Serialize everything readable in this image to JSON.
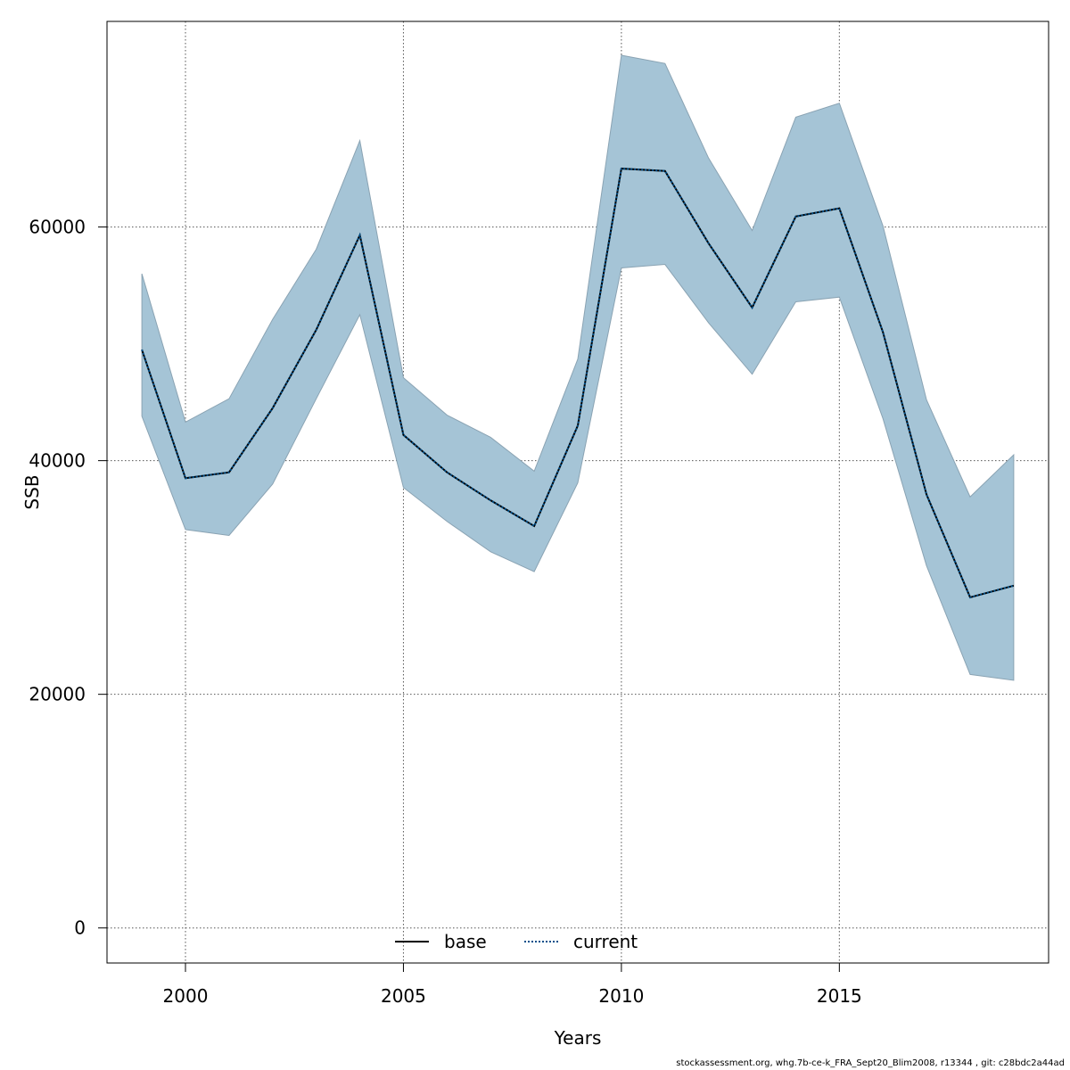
{
  "chart_data": {
    "type": "line",
    "xlabel": "Years",
    "ylabel": "SSB",
    "xlim": [
      1998.2,
      2019.8
    ],
    "ylim": [
      -3000,
      77600
    ],
    "x_ticks": [
      2000,
      2005,
      2010,
      2015
    ],
    "y_ticks": [
      0,
      20000,
      40000,
      60000
    ],
    "grid": true,
    "legend_position": "bottom-center",
    "x": [
      1999,
      2000,
      2001,
      2002,
      2003,
      2004,
      2005,
      2006,
      2007,
      2008,
      2009,
      2010,
      2011,
      2012,
      2013,
      2014,
      2015,
      2016,
      2017,
      2018,
      2019
    ],
    "series": [
      {
        "name": "base",
        "style": "solid",
        "color": "#000000",
        "values": [
          49500,
          38500,
          39000,
          44500,
          51200,
          59300,
          42200,
          39000,
          36600,
          34400,
          43000,
          65000,
          64800,
          58600,
          53100,
          60900,
          61600,
          51000,
          37100,
          28300,
          29300
        ]
      },
      {
        "name": "current",
        "style": "dotted",
        "color": "#00508a",
        "values": [
          49500,
          38500,
          39000,
          44500,
          51200,
          59300,
          42200,
          39000,
          36600,
          34400,
          43000,
          65000,
          64800,
          58600,
          53100,
          60900,
          61600,
          51000,
          37100,
          28300,
          29300
        ]
      }
    ],
    "band": {
      "color": "#a5c4d6",
      "upper": [
        56000,
        43300,
        45300,
        52100,
        58100,
        67400,
        47100,
        43900,
        42000,
        39100,
        48700,
        74700,
        74000,
        65900,
        59700,
        69400,
        70600,
        60100,
        45200,
        36900,
        40500
      ],
      "lower": [
        43800,
        34100,
        33600,
        38000,
        45300,
        52500,
        37700,
        34800,
        32200,
        30500,
        38100,
        56500,
        56800,
        51800,
        47400,
        53600,
        54000,
        43600,
        31000,
        21700,
        21200
      ]
    }
  },
  "footer": "stockassessment.org, whg.7b-ce-k_FRA_Sept20_Blim2008, r13344 , git: c28bdc2a44ad"
}
